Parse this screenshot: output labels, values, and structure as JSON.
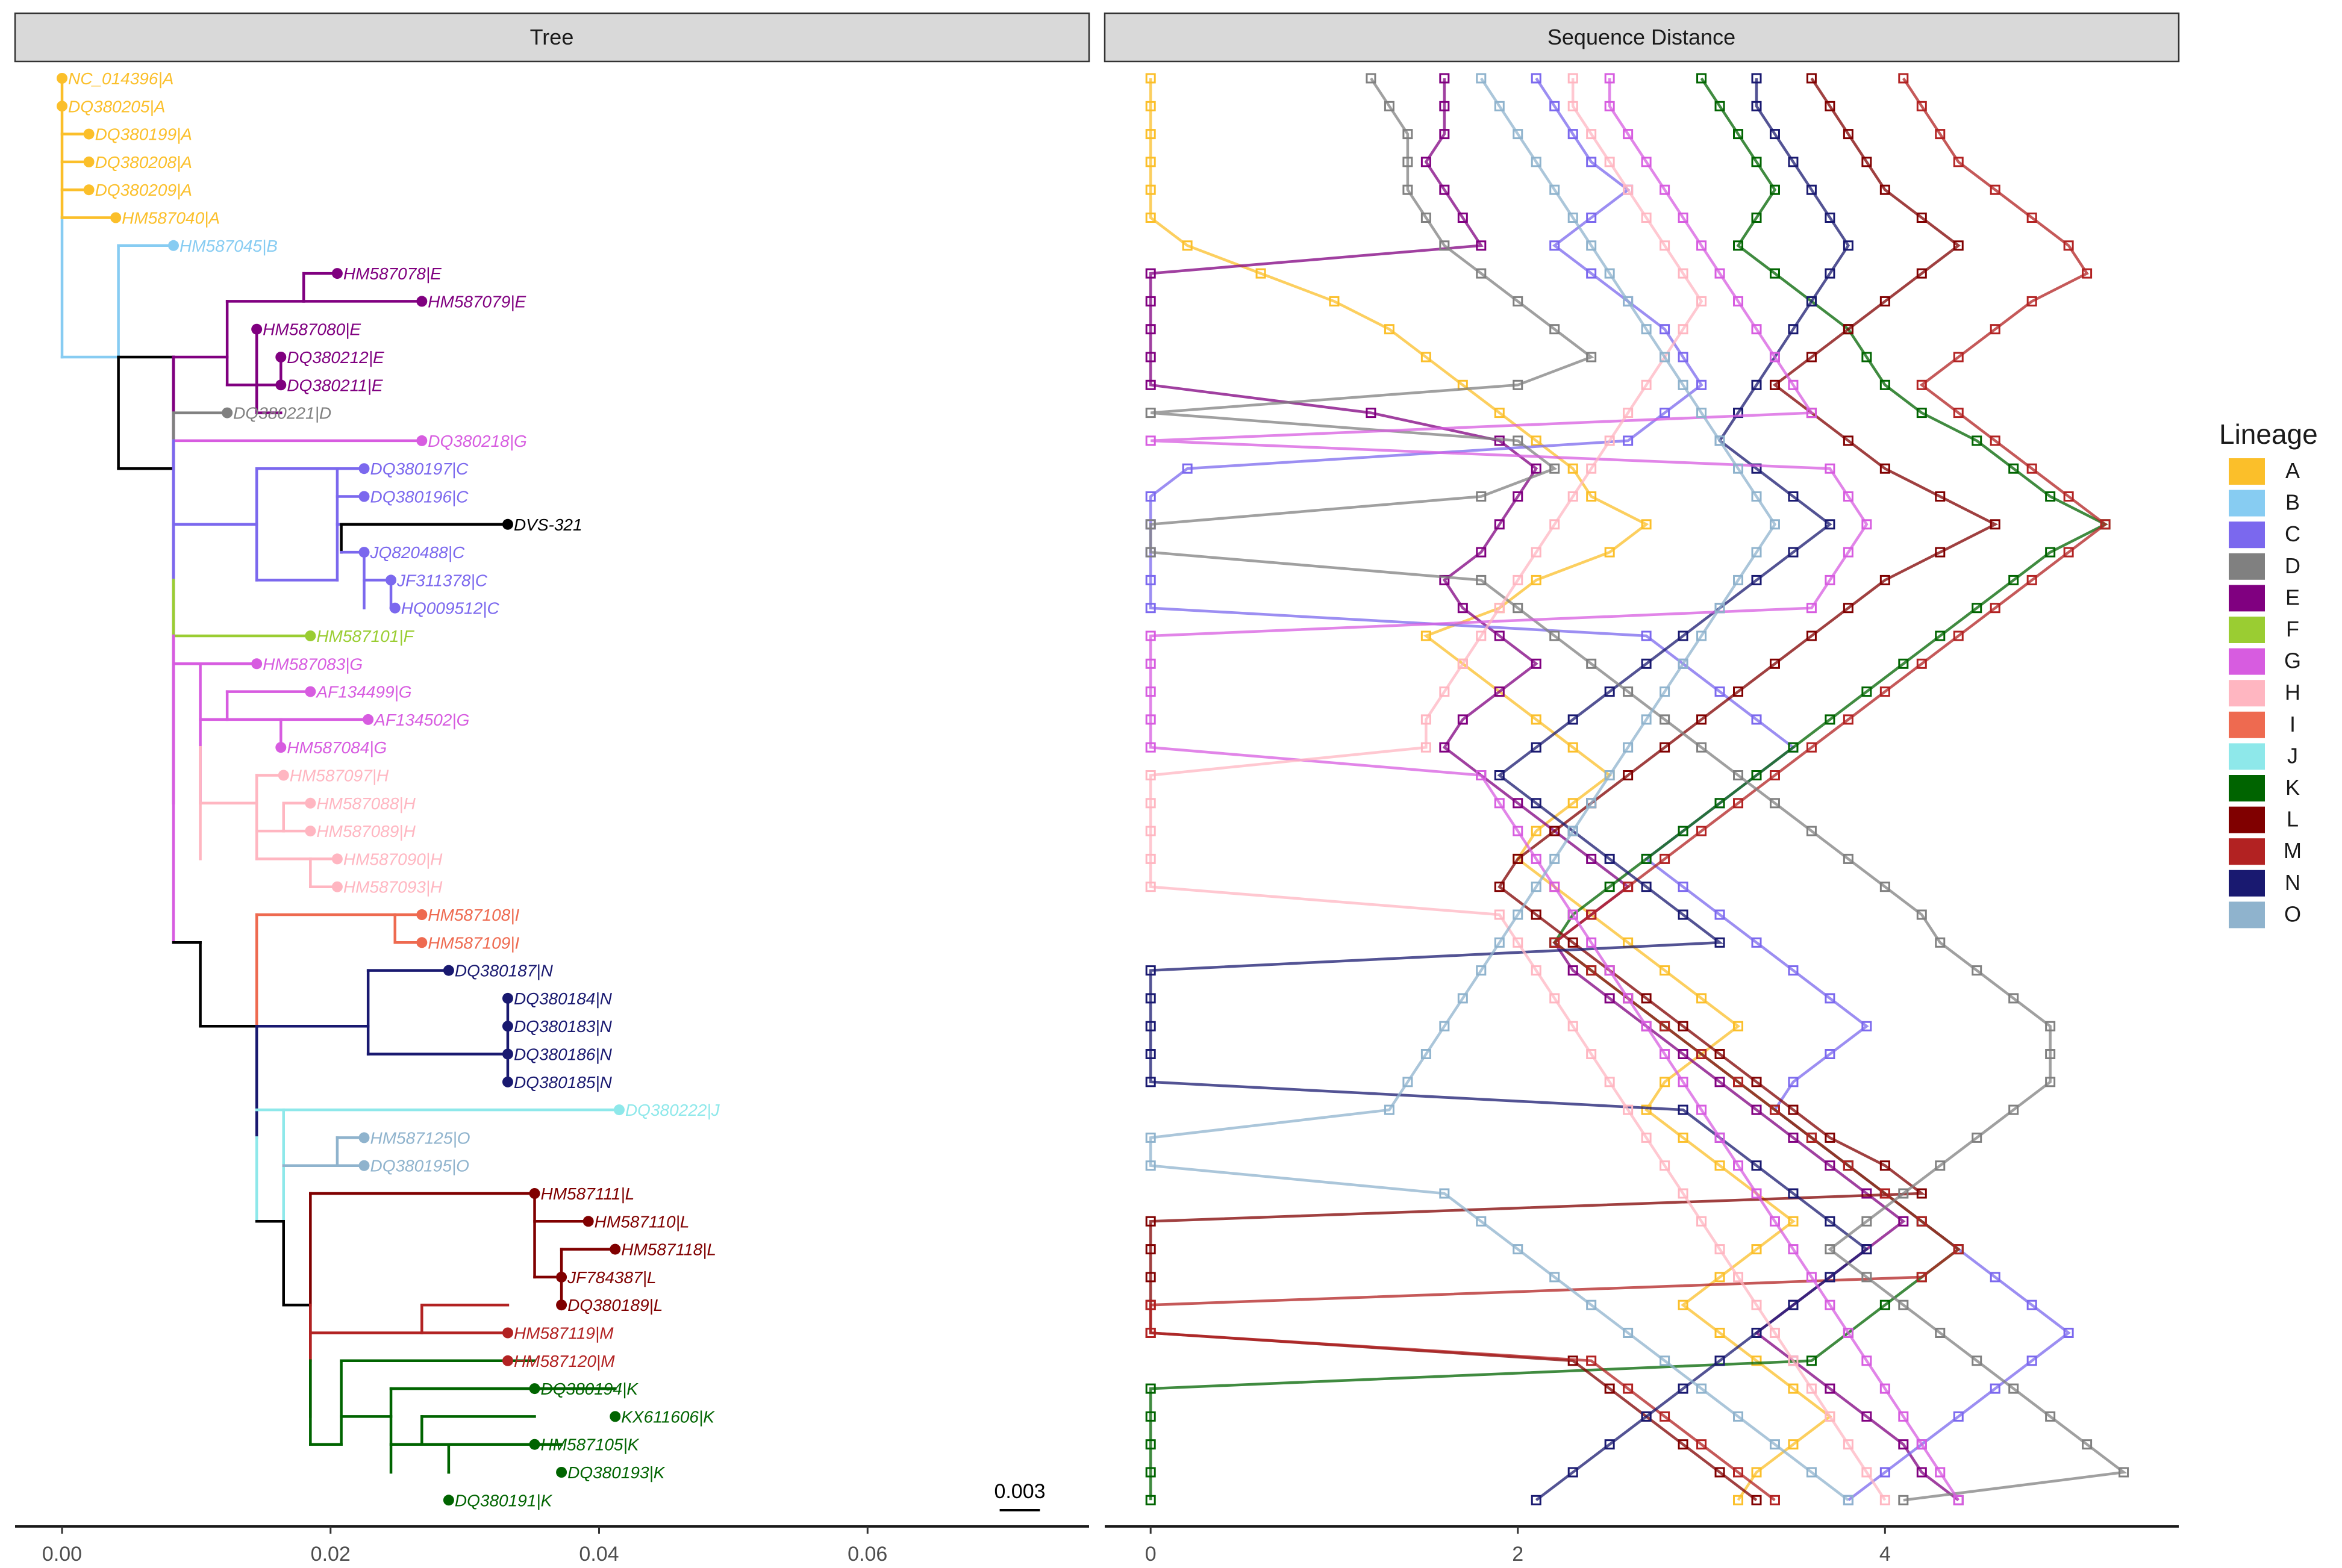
{
  "chart_data": [
    {
      "type": "tree",
      "title": "Tree",
      "x_ticks": [
        "0.00",
        "0.02",
        "0.04",
        "0.06"
      ],
      "x_tick_values": [
        0.0,
        0.02,
        0.04,
        0.06
      ],
      "xlim": [
        -0.0035,
        0.0765
      ],
      "scale_bar_label": "0.003",
      "scale_bar_value": 0.003,
      "tips": [
        {
          "label": "NC_014396|A",
          "lineage": "A",
          "x": 0.0
        },
        {
          "label": "DQ380205|A",
          "lineage": "A",
          "x": 0.0
        },
        {
          "label": "DQ380199|A",
          "lineage": "A",
          "x": 0.002
        },
        {
          "label": "DQ380208|A",
          "lineage": "A",
          "x": 0.002
        },
        {
          "label": "DQ380209|A",
          "lineage": "A",
          "x": 0.002
        },
        {
          "label": "HM587040|A",
          "lineage": "A",
          "x": 0.004
        },
        {
          "label": "HM587045|B",
          "lineage": "B",
          "x": 0.0083
        },
        {
          "label": "HM587078|E",
          "lineage": "E",
          "x": 0.0205
        },
        {
          "label": "HM587079|E",
          "lineage": "E",
          "x": 0.0268
        },
        {
          "label": "HM587080|E",
          "lineage": "E",
          "x": 0.0145
        },
        {
          "label": "DQ380212|E",
          "lineage": "E",
          "x": 0.0163
        },
        {
          "label": "DQ380211|E",
          "lineage": "E",
          "x": 0.0163
        },
        {
          "label": "DQ380221|D",
          "lineage": "D",
          "x": 0.0123
        },
        {
          "label": "DQ380218|G",
          "lineage": "G",
          "x": 0.0268
        },
        {
          "label": "DQ380197|C",
          "lineage": "C",
          "x": 0.0225
        },
        {
          "label": "DQ380196|C",
          "lineage": "C",
          "x": 0.0225
        },
        {
          "label": "DVS-321",
          "lineage": "",
          "x": 0.0332
        },
        {
          "label": "JQ820488|C",
          "lineage": "C",
          "x": 0.0225
        },
        {
          "label": "JF311378|C",
          "lineage": "C",
          "x": 0.0245
        },
        {
          "label": "HQ009512|C",
          "lineage": "C",
          "x": 0.0248
        },
        {
          "label": "HM587101|F",
          "lineage": "F",
          "x": 0.0185
        },
        {
          "label": "HM587083|G",
          "lineage": "G",
          "x": 0.0145
        },
        {
          "label": "AF134499|G",
          "lineage": "G",
          "x": 0.0185
        },
        {
          "label": "AF134502|G",
          "lineage": "G",
          "x": 0.0228
        },
        {
          "label": "HM587084|G",
          "lineage": "G",
          "x": 0.0163
        },
        {
          "label": "HM587097|H",
          "lineage": "H",
          "x": 0.0165
        },
        {
          "label": "HM587088|H",
          "lineage": "H",
          "x": 0.0185
        },
        {
          "label": "HM587089|H",
          "lineage": "H",
          "x": 0.0185
        },
        {
          "label": "HM587090|H",
          "lineage": "H",
          "x": 0.0205
        },
        {
          "label": "HM587093|H",
          "lineage": "H",
          "x": 0.0205
        },
        {
          "label": "HM587108|I",
          "lineage": "I",
          "x": 0.0268
        },
        {
          "label": "HM587109|I",
          "lineage": "I",
          "x": 0.0268
        },
        {
          "label": "DQ380187|N",
          "lineage": "N",
          "x": 0.0288
        },
        {
          "label": "DQ380184|N",
          "lineage": "N",
          "x": 0.0332
        },
        {
          "label": "DQ380183|N",
          "lineage": "N",
          "x": 0.0332
        },
        {
          "label": "DQ380186|N",
          "lineage": "N",
          "x": 0.0332
        },
        {
          "label": "DQ380185|N",
          "lineage": "N",
          "x": 0.0332
        },
        {
          "label": "DQ380222|J",
          "lineage": "J",
          "x": 0.0415
        },
        {
          "label": "HM587125|O",
          "lineage": "O",
          "x": 0.0225
        },
        {
          "label": "DQ380195|O",
          "lineage": "O",
          "x": 0.0225
        },
        {
          "label": "HM587111|L",
          "lineage": "L",
          "x": 0.0352
        },
        {
          "label": "HM587110|L",
          "lineage": "L",
          "x": 0.0392
        },
        {
          "label": "HM587118|L",
          "lineage": "L",
          "x": 0.0412
        },
        {
          "label": "JF784387|L",
          "lineage": "L",
          "x": 0.0372
        },
        {
          "label": "DQ380189|L",
          "lineage": "L",
          "x": 0.0372
        },
        {
          "label": "HM587119|M",
          "lineage": "M",
          "x": 0.0332
        },
        {
          "label": "HM587120|M",
          "lineage": "M",
          "x": 0.0332
        },
        {
          "label": "DQ380194|K",
          "lineage": "K",
          "x": 0.0352
        },
        {
          "label": "KX611606|K",
          "lineage": "K",
          "x": 0.0412
        },
        {
          "label": "HM587105|K",
          "lineage": "K",
          "x": 0.0352
        },
        {
          "label": "DQ380193|K",
          "lineage": "K",
          "x": 0.0372
        },
        {
          "label": "DQ380191|K",
          "lineage": "K",
          "x": 0.0288
        }
      ]
    },
    {
      "type": "line",
      "title": "Sequence Distance",
      "x_ticks": [
        "0",
        "2",
        "4"
      ],
      "x_tick_values": [
        0,
        2,
        4
      ],
      "xlim": [
        -0.25,
        5.6
      ],
      "note": "Each lineage series plots distance (x) against tip row (y, rows 0-51 top to bottom); values are approximate readings."
    }
  ],
  "legend": {
    "title": "Lineage",
    "items": [
      {
        "key": "A",
        "color": "#fbbf2a"
      },
      {
        "key": "B",
        "color": "#87ccf2"
      },
      {
        "key": "C",
        "color": "#7b68ee"
      },
      {
        "key": "D",
        "color": "#808080"
      },
      {
        "key": "E",
        "color": "#800080"
      },
      {
        "key": "F",
        "color": "#9acd32"
      },
      {
        "key": "G",
        "color": "#d75ce0"
      },
      {
        "key": "H",
        "color": "#ffb6c1"
      },
      {
        "key": "I",
        "color": "#ee6a50"
      },
      {
        "key": "J",
        "color": "#8ee8ea"
      },
      {
        "key": "K",
        "color": "#006400"
      },
      {
        "key": "L",
        "color": "#800000"
      },
      {
        "key": "M",
        "color": "#b22222"
      },
      {
        "key": "N",
        "color": "#191970"
      },
      {
        "key": "O",
        "color": "#8fb3cd"
      }
    ]
  },
  "query_color": "#000000",
  "distance_series": [
    {
      "lineage": "A",
      "x": [
        0.0,
        0.0,
        0.0,
        0.0,
        0.0,
        0.0,
        0.2,
        0.6,
        1.0,
        1.3,
        1.5,
        1.7,
        1.9,
        2.1,
        2.3,
        2.4,
        2.7,
        2.5,
        2.1,
        1.9,
        1.5,
        1.7,
        1.9,
        2.1,
        2.3,
        2.5,
        2.3,
        2.1,
        2.0,
        2.2,
        2.4,
        2.6,
        2.8,
        3.0,
        3.2,
        3.0,
        2.8,
        2.7,
        2.9,
        3.1,
        3.3,
        3.5,
        3.3,
        3.1,
        2.9,
        3.1,
        3.3,
        3.5,
        3.7,
        3.5,
        3.3,
        3.2
      ]
    },
    {
      "lineage": "E",
      "x": [
        1.6,
        1.6,
        1.6,
        1.5,
        1.6,
        1.7,
        1.8,
        0.0,
        0.0,
        0.0,
        0.0,
        0.0,
        1.2,
        1.9,
        2.1,
        2.0,
        1.9,
        1.8,
        1.6,
        1.7,
        1.9,
        2.1,
        1.9,
        1.7,
        1.6,
        1.8,
        2.0,
        2.2,
        2.4,
        2.6,
        2.4,
        2.2,
        2.3,
        2.5,
        2.7,
        2.9,
        3.1,
        3.3,
        3.5,
        3.7,
        3.9,
        4.1,
        3.9,
        3.7,
        3.5,
        3.3,
        3.5,
        3.7,
        3.9,
        4.1,
        4.2,
        4.4
      ]
    },
    {
      "lineage": "C",
      "x": [
        2.1,
        2.2,
        2.3,
        2.4,
        2.6,
        2.4,
        2.2,
        2.4,
        2.6,
        2.8,
        2.9,
        3.0,
        2.8,
        2.6,
        0.2,
        0.0,
        0.0,
        0.0,
        0.0,
        0.0,
        2.7,
        2.9,
        3.1,
        3.3,
        3.5,
        3.3,
        3.1,
        2.9,
        2.7,
        2.9,
        3.1,
        3.3,
        3.5,
        3.7,
        3.9,
        3.7,
        3.5,
        3.4,
        3.6,
        3.8,
        4.0,
        4.2,
        4.4,
        4.6,
        4.8,
        5.0,
        4.8,
        4.6,
        4.4,
        4.2,
        4.0,
        3.8
      ]
    },
    {
      "lineage": "K",
      "x": [
        3.0,
        3.1,
        3.2,
        3.3,
        3.4,
        3.3,
        3.2,
        3.4,
        3.6,
        3.8,
        3.9,
        4.0,
        4.2,
        4.5,
        4.7,
        4.9,
        5.2,
        4.9,
        4.7,
        4.5,
        4.3,
        4.1,
        3.9,
        3.7,
        3.5,
        3.3,
        3.1,
        2.9,
        2.7,
        2.5,
        2.3,
        2.2,
        2.4,
        2.6,
        2.8,
        3.0,
        3.2,
        3.4,
        3.6,
        3.8,
        4.0,
        4.2,
        4.4,
        4.2,
        4.0,
        3.8,
        3.6,
        0.0,
        0.0,
        0.0,
        0.0,
        0.0
      ]
    },
    {
      "lineage": "L",
      "x": [
        3.6,
        3.7,
        3.8,
        3.9,
        4.0,
        4.2,
        4.4,
        4.2,
        4.0,
        3.8,
        3.6,
        3.4,
        3.6,
        3.8,
        4.0,
        4.3,
        4.6,
        4.3,
        4.0,
        3.8,
        3.6,
        3.4,
        3.2,
        3.0,
        2.8,
        2.6,
        2.4,
        2.2,
        2.0,
        1.9,
        2.1,
        2.3,
        2.5,
        2.7,
        2.9,
        3.1,
        3.3,
        3.5,
        3.7,
        4.0,
        4.2,
        0.0,
        0.0,
        0.0,
        0.0,
        0.0,
        2.3,
        2.5,
        2.7,
        2.9,
        3.1,
        3.3
      ]
    },
    {
      "lineage": "M",
      "x": [
        4.1,
        4.2,
        4.3,
        4.4,
        4.6,
        4.8,
        5.0,
        5.1,
        4.8,
        4.6,
        4.4,
        4.2,
        4.4,
        4.6,
        4.8,
        5.0,
        5.2,
        5.0,
        4.8,
        4.6,
        4.4,
        4.2,
        4.0,
        3.8,
        3.6,
        3.4,
        3.2,
        3.0,
        2.8,
        2.6,
        2.4,
        2.2,
        2.4,
        2.6,
        2.8,
        3.0,
        3.2,
        3.4,
        3.6,
        3.8,
        4.0,
        4.2,
        4.4,
        4.2,
        0.0,
        0.0,
        2.4,
        2.6,
        2.8,
        3.0,
        3.2,
        3.4
      ]
    },
    {
      "lineage": "N",
      "x": [
        3.3,
        3.3,
        3.4,
        3.5,
        3.6,
        3.7,
        3.8,
        3.7,
        3.6,
        3.5,
        3.4,
        3.3,
        3.2,
        3.1,
        3.3,
        3.5,
        3.7,
        3.5,
        3.3,
        3.1,
        2.9,
        2.7,
        2.5,
        2.3,
        2.1,
        1.9,
        2.1,
        2.3,
        2.5,
        2.7,
        2.9,
        3.1,
        0.0,
        0.0,
        0.0,
        0.0,
        0.0,
        2.9,
        3.1,
        3.3,
        3.5,
        3.7,
        3.9,
        3.7,
        3.5,
        3.3,
        3.1,
        2.9,
        2.7,
        2.5,
        2.3,
        2.1
      ]
    },
    {
      "lineage": "D",
      "x": [
        1.2,
        1.3,
        1.4,
        1.4,
        1.4,
        1.5,
        1.6,
        1.8,
        2.0,
        2.2,
        2.4,
        2.0,
        0.0,
        2.0,
        2.2,
        1.8,
        0.0,
        0.0,
        1.8,
        2.0,
        2.2,
        2.4,
        2.6,
        2.8,
        3.0,
        3.2,
        3.4,
        3.6,
        3.8,
        4.0,
        4.2,
        4.3,
        4.5,
        4.7,
        4.9,
        4.9,
        4.9,
        4.7,
        4.5,
        4.3,
        4.1,
        3.9,
        3.7,
        3.9,
        4.1,
        4.3,
        4.5,
        4.7,
        4.9,
        5.1,
        5.3,
        4.1
      ]
    },
    {
      "lineage": "G",
      "x": [
        2.5,
        2.5,
        2.6,
        2.7,
        2.8,
        2.9,
        3.0,
        3.1,
        3.2,
        3.3,
        3.4,
        3.5,
        3.6,
        0.0,
        3.7,
        3.8,
        3.9,
        3.8,
        3.7,
        3.6,
        0.0,
        0.0,
        0.0,
        0.0,
        0.0,
        1.8,
        1.9,
        2.0,
        2.1,
        2.2,
        2.3,
        2.4,
        2.5,
        2.6,
        2.7,
        2.8,
        2.9,
        3.0,
        3.1,
        3.2,
        3.3,
        3.4,
        3.5,
        3.6,
        3.7,
        3.8,
        3.9,
        4.0,
        4.1,
        4.2,
        4.3,
        4.4
      ]
    },
    {
      "lineage": "H",
      "x": [
        2.3,
        2.3,
        2.4,
        2.5,
        2.6,
        2.7,
        2.8,
        2.9,
        3.0,
        2.9,
        2.8,
        2.7,
        2.6,
        2.5,
        2.4,
        2.3,
        2.2,
        2.1,
        2.0,
        1.9,
        1.8,
        1.7,
        1.6,
        1.5,
        1.5,
        0.0,
        0.0,
        0.0,
        0.0,
        0.0,
        1.9,
        2.0,
        2.1,
        2.2,
        2.3,
        2.4,
        2.5,
        2.6,
        2.7,
        2.8,
        2.9,
        3.0,
        3.1,
        3.2,
        3.3,
        3.4,
        3.5,
        3.6,
        3.7,
        3.8,
        3.9,
        4.0
      ]
    },
    {
      "lineage": "O",
      "x": [
        1.8,
        1.9,
        2.0,
        2.1,
        2.2,
        2.3,
        2.4,
        2.5,
        2.6,
        2.7,
        2.8,
        2.9,
        3.0,
        3.1,
        3.2,
        3.3,
        3.4,
        3.3,
        3.2,
        3.1,
        3.0,
        2.9,
        2.8,
        2.7,
        2.6,
        2.5,
        2.4,
        2.3,
        2.2,
        2.1,
        2.0,
        1.9,
        1.8,
        1.7,
        1.6,
        1.5,
        1.4,
        1.3,
        0.0,
        0.0,
        1.6,
        1.8,
        2.0,
        2.2,
        2.4,
        2.6,
        2.8,
        3.0,
        3.2,
        3.4,
        3.6,
        3.8
      ]
    }
  ]
}
